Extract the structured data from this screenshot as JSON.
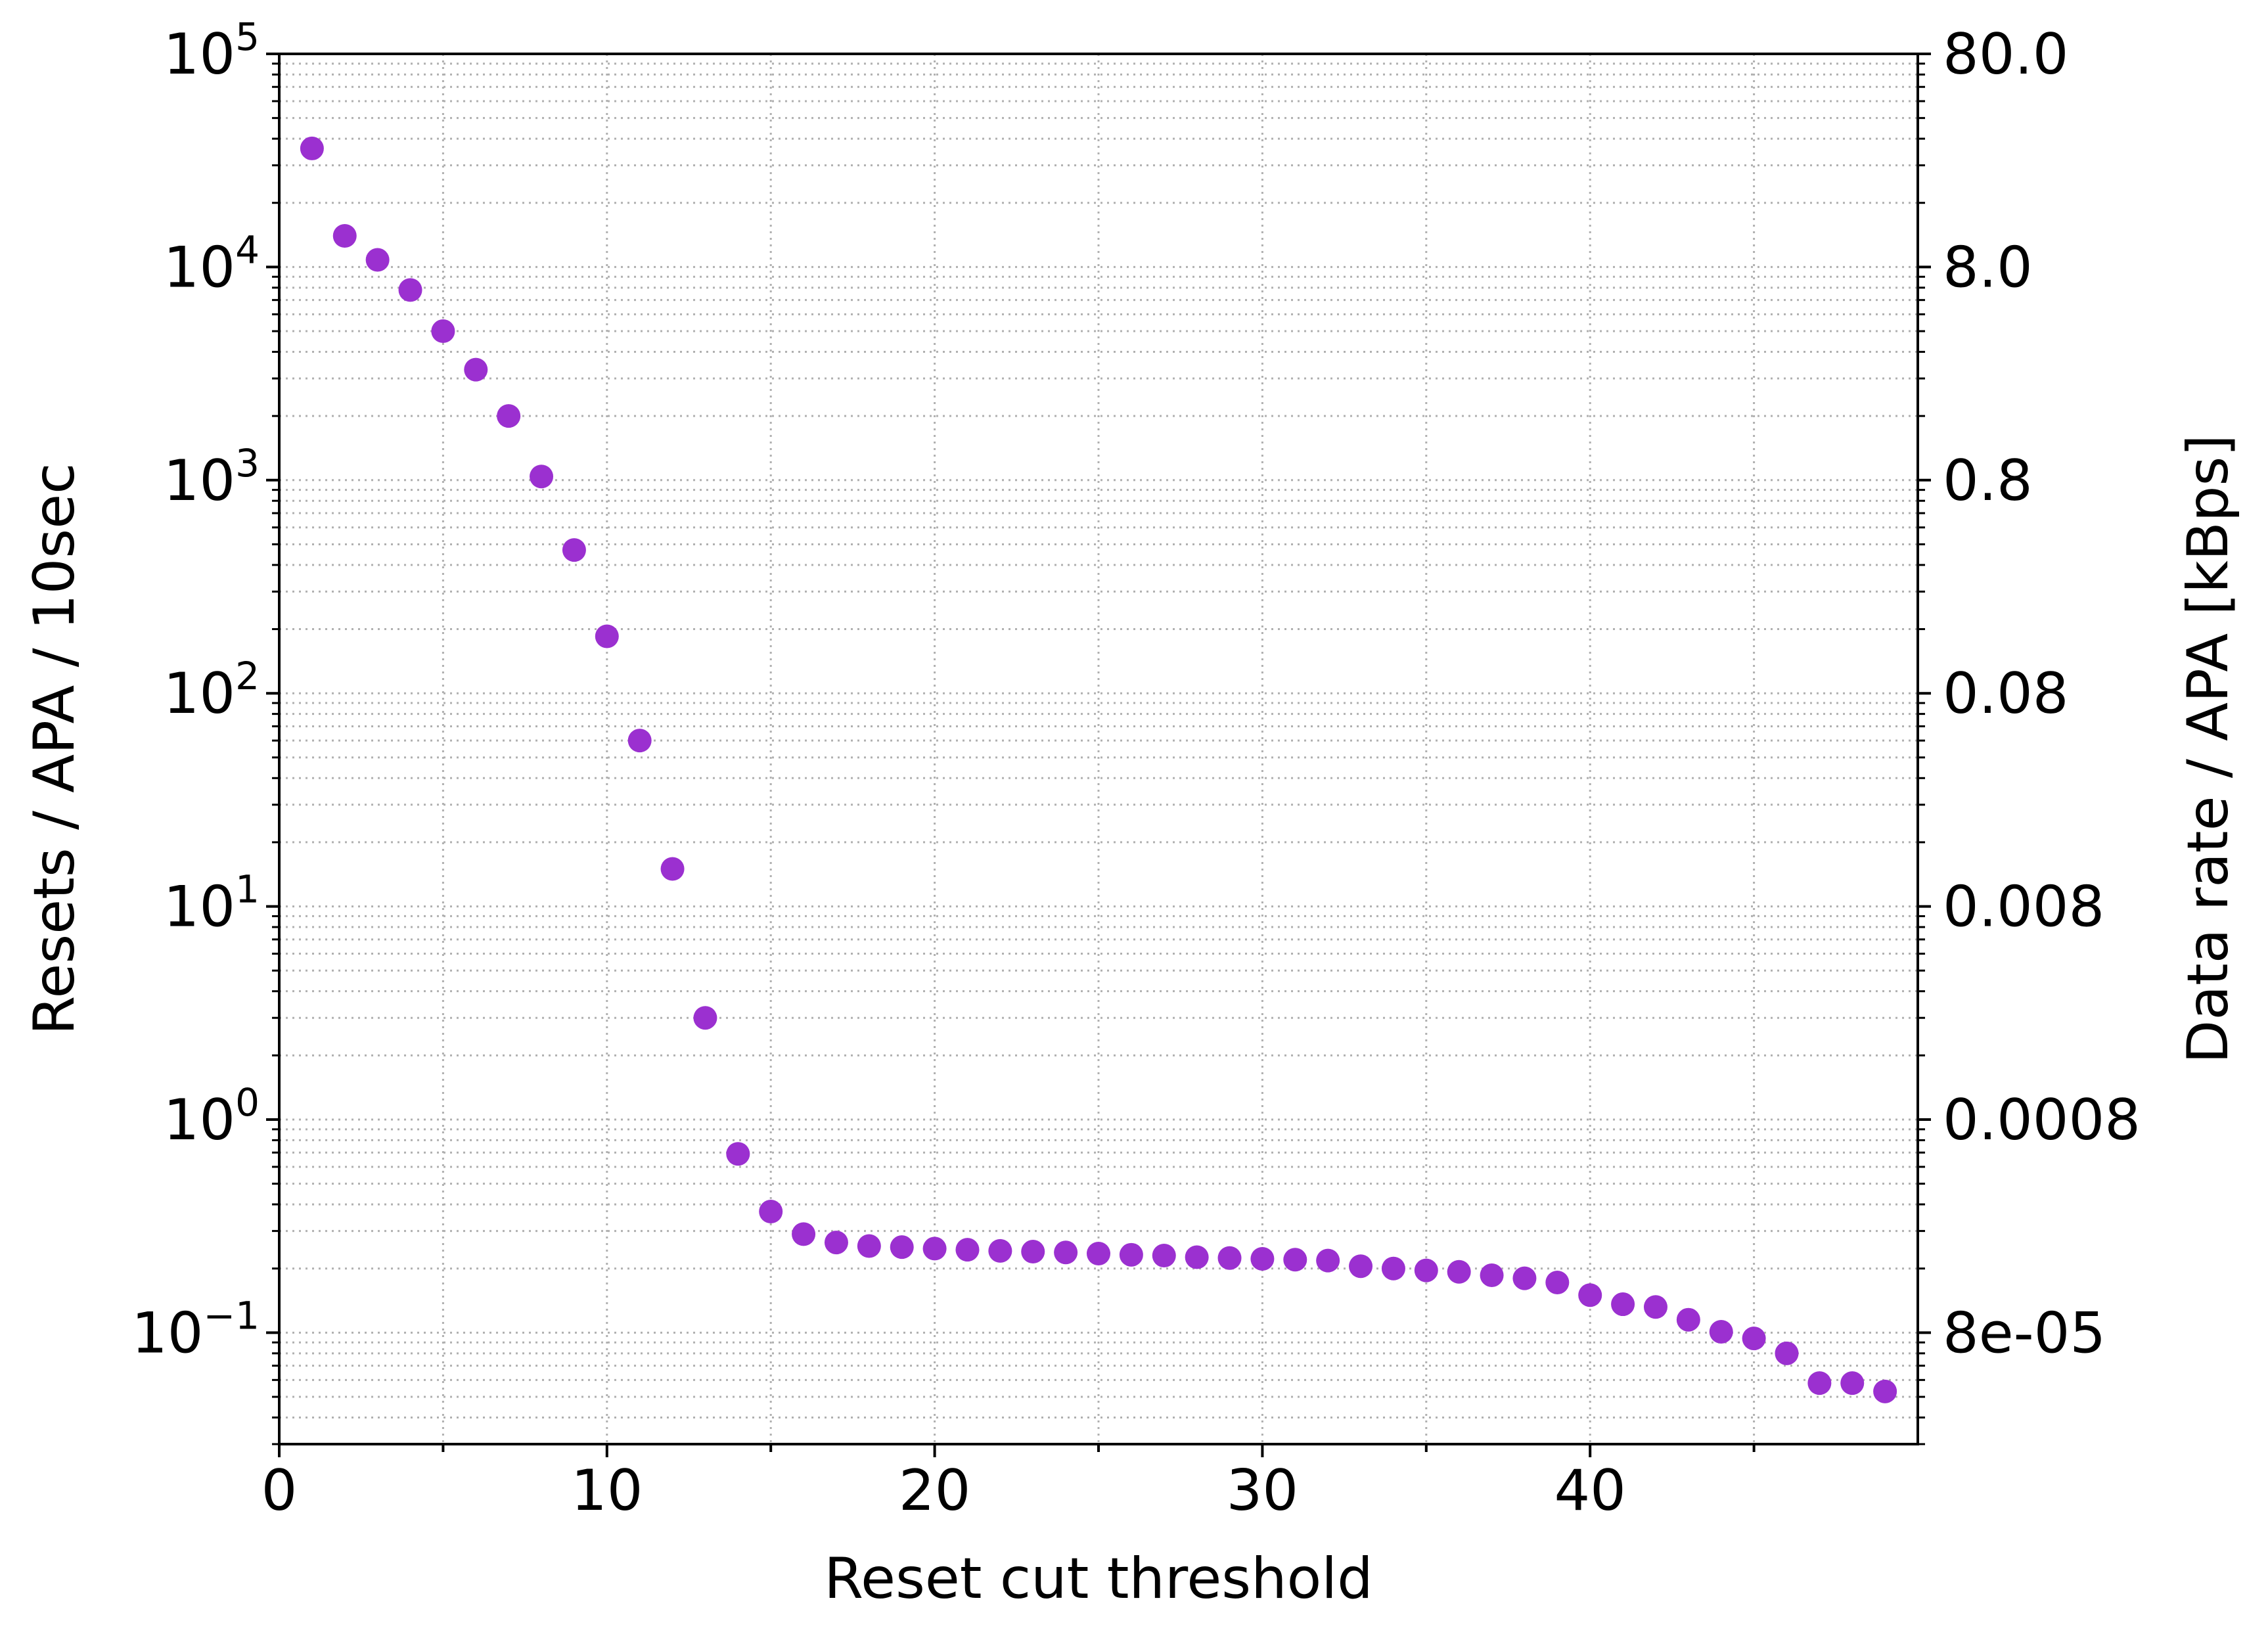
{
  "chart_data": {
    "type": "scatter",
    "title": "",
    "xlabel": "Reset cut threshold",
    "ylabel": "Resets / APA / 10sec",
    "y2label": "Data rate / APA [kBps]",
    "xlim": [
      0,
      50
    ],
    "ylim": [
      0.03,
      100000
    ],
    "yscale": "log",
    "grid": true,
    "marker_color": "#9b30d0",
    "x_ticks": [
      {
        "value": 0,
        "label": "0"
      },
      {
        "value": 10,
        "label": "10"
      },
      {
        "value": 20,
        "label": "20"
      },
      {
        "value": 30,
        "label": "30"
      },
      {
        "value": 40,
        "label": "40"
      }
    ],
    "y_ticks": [
      {
        "value": 100000,
        "base": "10",
        "exp": "5"
      },
      {
        "value": 10000,
        "base": "10",
        "exp": "4"
      },
      {
        "value": 1000,
        "base": "10",
        "exp": "3"
      },
      {
        "value": 100,
        "base": "10",
        "exp": "2"
      },
      {
        "value": 10,
        "base": "10",
        "exp": "1"
      },
      {
        "value": 1,
        "base": "10",
        "exp": "0"
      },
      {
        "value": 0.1,
        "base": "10",
        "exp": "−1"
      }
    ],
    "y2_ticks": [
      {
        "value": 100000,
        "label": "80.0"
      },
      {
        "value": 10000,
        "label": "8.0"
      },
      {
        "value": 1000,
        "label": "0.8"
      },
      {
        "value": 100,
        "label": "0.08"
      },
      {
        "value": 10,
        "label": "0.008"
      },
      {
        "value": 1,
        "label": "0.0008"
      },
      {
        "value": 0.1,
        "label": "8e-05"
      }
    ],
    "series": [
      {
        "name": "resets",
        "x": [
          1,
          2,
          3,
          4,
          5,
          6,
          7,
          8,
          9,
          10,
          11,
          12,
          13,
          14,
          15,
          16,
          17,
          18,
          19,
          20,
          21,
          22,
          23,
          24,
          25,
          26,
          27,
          28,
          29,
          30,
          31,
          32,
          33,
          34,
          35,
          36,
          37,
          38,
          39,
          40,
          41,
          42,
          43,
          44,
          45,
          46,
          47,
          48,
          49
        ],
        "y": [
          36000,
          14000,
          10800,
          7800,
          5000,
          3300,
          2000,
          1040,
          470,
          185,
          60,
          15,
          3.0,
          0.69,
          0.37,
          0.29,
          0.265,
          0.255,
          0.252,
          0.248,
          0.245,
          0.242,
          0.24,
          0.238,
          0.235,
          0.232,
          0.23,
          0.226,
          0.224,
          0.222,
          0.22,
          0.218,
          0.205,
          0.2,
          0.196,
          0.193,
          0.186,
          0.18,
          0.172,
          0.15,
          0.136,
          0.132,
          0.115,
          0.101,
          0.094,
          0.08,
          0.058,
          0.058,
          0.053
        ]
      }
    ]
  }
}
